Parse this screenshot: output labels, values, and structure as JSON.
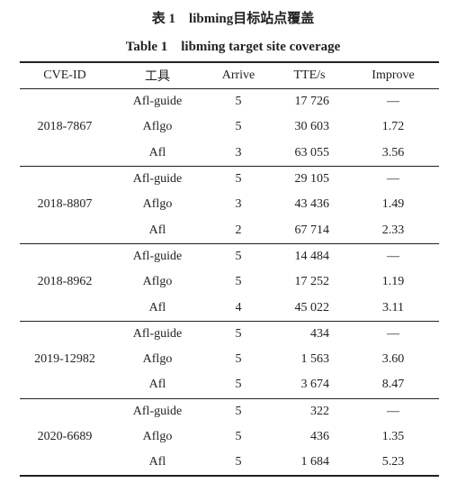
{
  "caption": {
    "title_cn": "表 1　libming目标站点覆盖",
    "title_en": "Table 1　libming target site coverage"
  },
  "table": {
    "header": [
      "CVE-ID",
      "工具",
      "Arrive",
      "TTE/s",
      "Improve"
    ],
    "groups": [
      {
        "cve": "2018-7867",
        "rows": [
          [
            "Afl-guide",
            "5",
            "17 726",
            "—"
          ],
          [
            "Aflgo",
            "5",
            "30 603",
            "1.72"
          ],
          [
            "Afl",
            "3",
            "63 055",
            "3.56"
          ]
        ]
      },
      {
        "cve": "2018-8807",
        "rows": [
          [
            "Afl-guide",
            "5",
            "29 105",
            "—"
          ],
          [
            "Aflgo",
            "3",
            "43 436",
            "1.49"
          ],
          [
            "Afl",
            "2",
            "67 714",
            "2.33"
          ]
        ]
      },
      {
        "cve": "2018-8962",
        "rows": [
          [
            "Afl-guide",
            "5",
            "14 484",
            "—"
          ],
          [
            "Aflgo",
            "5",
            "17 252",
            "1.19"
          ],
          [
            "Afl",
            "4",
            "45 022",
            "3.11"
          ]
        ]
      },
      {
        "cve": "2019-12982",
        "rows": [
          [
            "Afl-guide",
            "5",
            "434",
            "—"
          ],
          [
            "Aflgo",
            "5",
            "1 563",
            "3.60"
          ],
          [
            "Afl",
            "5",
            "3 674",
            "8.47"
          ]
        ]
      },
      {
        "cve": "2020-6689",
        "rows": [
          [
            "Afl-guide",
            "5",
            "322",
            "—"
          ],
          [
            "Aflgo",
            "5",
            "436",
            "1.35"
          ],
          [
            "Afl",
            "5",
            "1 684",
            "5.23"
          ]
        ]
      }
    ]
  }
}
